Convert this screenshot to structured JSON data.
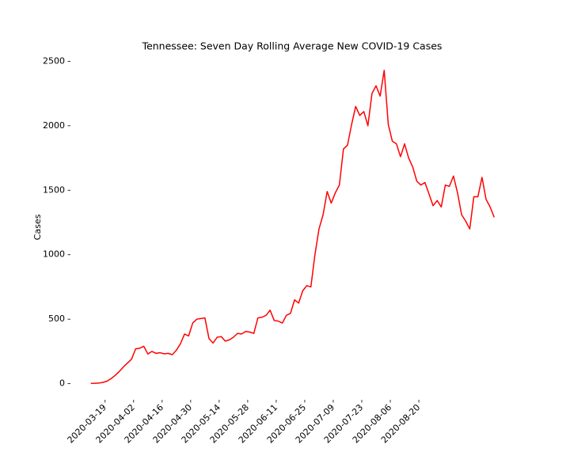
{
  "chart_data": {
    "type": "line",
    "title": "Tennessee: Seven Day Rolling Average New COVID-19 Cases",
    "y_label": "Cases",
    "x": [
      "2020-03-12",
      "2020-03-14",
      "2020-03-16",
      "2020-03-18",
      "2020-03-20",
      "2020-03-22",
      "2020-03-24",
      "2020-03-26",
      "2020-03-28",
      "2020-03-30",
      "2020-04-01",
      "2020-04-03",
      "2020-04-05",
      "2020-04-07",
      "2020-04-09",
      "2020-04-11",
      "2020-04-13",
      "2020-04-15",
      "2020-04-17",
      "2020-04-19",
      "2020-04-21",
      "2020-04-23",
      "2020-04-25",
      "2020-04-27",
      "2020-04-29",
      "2020-05-01",
      "2020-05-03",
      "2020-05-05",
      "2020-05-07",
      "2020-05-09",
      "2020-05-11",
      "2020-05-13",
      "2020-05-15",
      "2020-05-17",
      "2020-05-19",
      "2020-05-21",
      "2020-05-23",
      "2020-05-25",
      "2020-05-27",
      "2020-05-29",
      "2020-05-31",
      "2020-06-02",
      "2020-06-04",
      "2020-06-06",
      "2020-06-08",
      "2020-06-10",
      "2020-06-12",
      "2020-06-14",
      "2020-06-16",
      "2020-06-18",
      "2020-06-20",
      "2020-06-22",
      "2020-06-24",
      "2020-06-26",
      "2020-06-28",
      "2020-06-30",
      "2020-07-02",
      "2020-07-04",
      "2020-07-06",
      "2020-07-08",
      "2020-07-10",
      "2020-07-12",
      "2020-07-14",
      "2020-07-16",
      "2020-07-18",
      "2020-07-20",
      "2020-07-22",
      "2020-07-24",
      "2020-07-26",
      "2020-07-28",
      "2020-07-30",
      "2020-08-01",
      "2020-08-03",
      "2020-08-05",
      "2020-08-07",
      "2020-08-09",
      "2020-08-11",
      "2020-08-13",
      "2020-08-15",
      "2020-08-17",
      "2020-08-19",
      "2020-08-21",
      "2020-08-23",
      "2020-08-25",
      "2020-08-27",
      "2020-08-29",
      "2020-08-31",
      "2020-09-02",
      "2020-09-04",
      "2020-09-06",
      "2020-09-08",
      "2020-09-10",
      "2020-09-12",
      "2020-09-14",
      "2020-09-16",
      "2020-09-18",
      "2020-09-20",
      "2020-09-22",
      "2020-09-24",
      "2020-09-26"
    ],
    "series": [
      {
        "name": "Cases",
        "color": "#ff0000",
        "values": [
          2,
          3,
          5,
          10,
          20,
          40,
          65,
          95,
          130,
          160,
          190,
          270,
          275,
          290,
          230,
          250,
          235,
          240,
          232,
          235,
          225,
          260,
          310,
          385,
          370,
          470,
          500,
          505,
          510,
          350,
          315,
          360,
          365,
          330,
          340,
          360,
          390,
          385,
          405,
          400,
          390,
          510,
          515,
          530,
          570,
          490,
          485,
          470,
          530,
          545,
          650,
          625,
          720,
          760,
          750,
          1000,
          1200,
          1310,
          1490,
          1400,
          1480,
          1540,
          1820,
          1850,
          2010,
          2150,
          2080,
          2110,
          2000,
          2250,
          2310,
          2230,
          2430,
          2010,
          1880,
          1860,
          1760,
          1860,
          1750,
          1680,
          1570,
          1540,
          1560,
          1470,
          1380,
          1420,
          1370,
          1540,
          1530,
          1610,
          1480,
          1310,
          1260,
          1200,
          1450,
          1450,
          1600,
          1430,
          1370,
          1290
        ]
      }
    ],
    "xlim": [
      "2020-03-02",
      "2020-10-06"
    ],
    "xticks": [
      "2020-03-19",
      "2020-04-02",
      "2020-04-16",
      "2020-04-30",
      "2020-05-14",
      "2020-05-28",
      "2020-06-11",
      "2020-06-25",
      "2020-07-09",
      "2020-07-23",
      "2020-08-06",
      "2020-08-20"
    ],
    "ylim": [
      -125,
      2570
    ],
    "yticks": [
      0,
      500,
      1000,
      1500,
      2000,
      2500
    ]
  }
}
